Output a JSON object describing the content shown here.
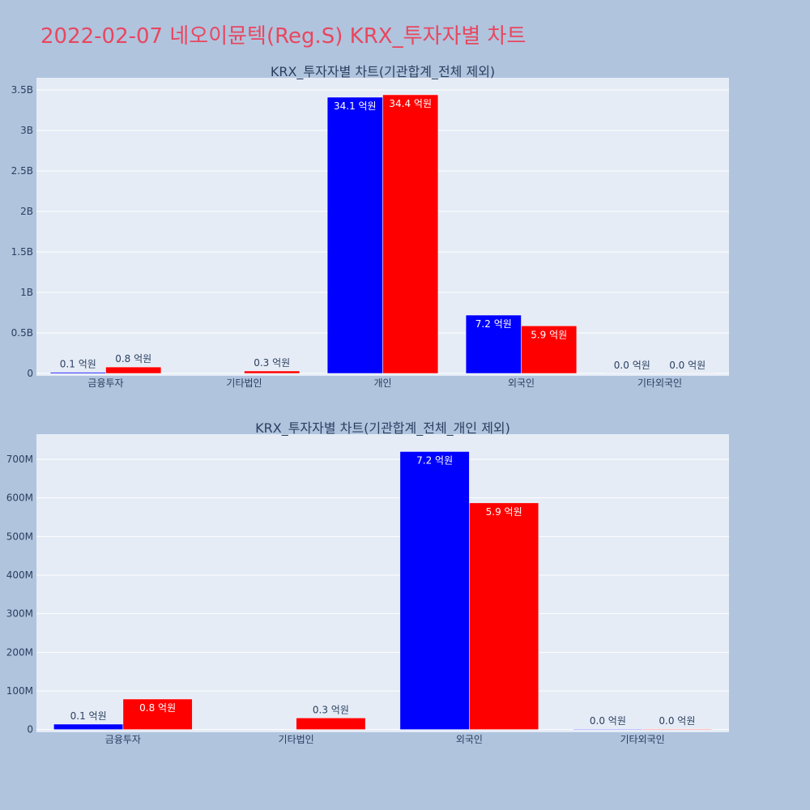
{
  "page_title": "2022-02-07 네오이뮨텍(Reg.S) KRX_투자자별 차트",
  "colors": {
    "background": "#b0c4de",
    "plot_bg": "#e5ecf6",
    "title": "#e8475f",
    "series_a": "#0000ff",
    "series_b": "#ff0000"
  },
  "chart_data": [
    {
      "type": "bar",
      "title": "KRX_투자자별 차트(기관합계_전체 제외)",
      "categories": [
        "금융투자",
        "기타법인",
        "개인",
        "외국인",
        "기타외국인"
      ],
      "yticks": [
        "0",
        "0.5B",
        "1B",
        "1.5B",
        "2B",
        "2.5B",
        "3B",
        "3.5B"
      ],
      "ytick_values": [
        0,
        500000000,
        1000000000,
        1500000000,
        2000000000,
        2500000000,
        3000000000,
        3500000000
      ],
      "ylim": [
        -30000000,
        3650000000
      ],
      "series": [
        {
          "color": "#0000ff",
          "values": [
            14000000,
            0,
            3410000000,
            720000000,
            1500000
          ],
          "labels": [
            "0.1 억원",
            "",
            "34.1 억원",
            "7.2 억원",
            "0.0 억원"
          ]
        },
        {
          "color": "#ff0000",
          "values": [
            79000000,
            30000000,
            3440000000,
            587000000,
            1500000
          ],
          "labels": [
            "0.8 억원",
            "0.3 억원",
            "34.4 억원",
            "5.9 억원",
            "0.0 억원"
          ]
        }
      ]
    },
    {
      "type": "bar",
      "title": "KRX_투자자별 차트(기관합계_전체_개인 제외)",
      "categories": [
        "금융투자",
        "기타법인",
        "외국인",
        "기타외국인"
      ],
      "yticks": [
        "0",
        "100M",
        "200M",
        "300M",
        "400M",
        "500M",
        "600M",
        "700M"
      ],
      "ytick_values": [
        0,
        100000000,
        200000000,
        300000000,
        400000000,
        500000000,
        600000000,
        700000000
      ],
      "ylim": [
        -7000000,
        765000000
      ],
      "series": [
        {
          "color": "#0000ff",
          "values": [
            14000000,
            0,
            720000000,
            1500000
          ],
          "labels": [
            "0.1 억원",
            "",
            "7.2 억원",
            "0.0 억원"
          ]
        },
        {
          "color": "#ff0000",
          "values": [
            79000000,
            30000000,
            587000000,
            1500000
          ],
          "labels": [
            "0.8 억원",
            "0.3 억원",
            "5.9 억원",
            "0.0 억원"
          ]
        }
      ]
    }
  ]
}
